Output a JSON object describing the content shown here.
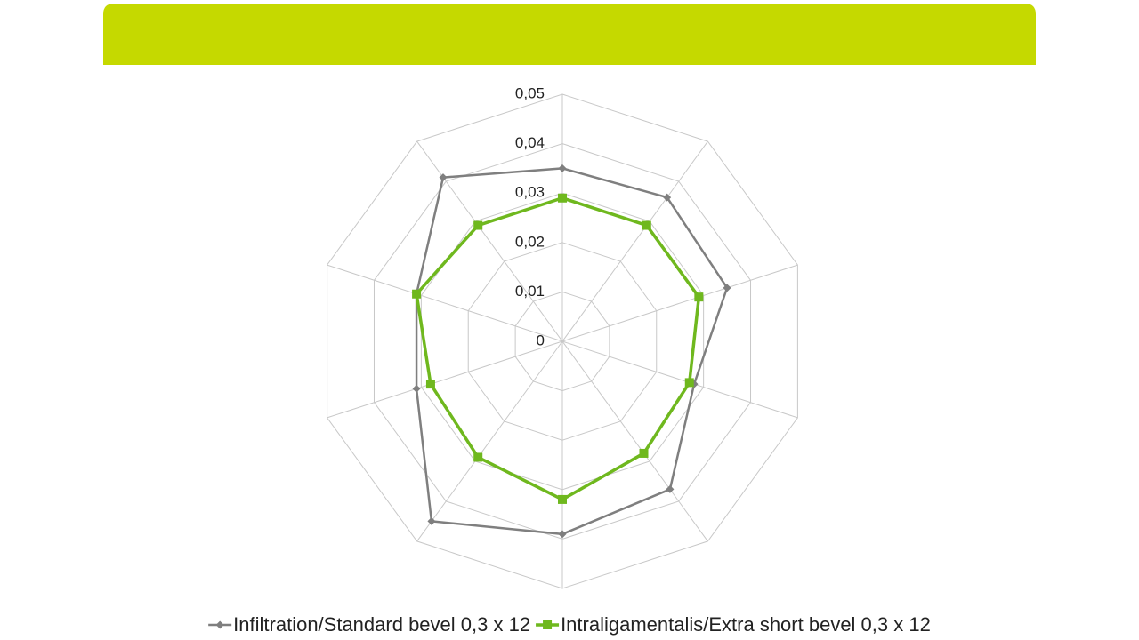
{
  "chart_data": {
    "type": "radar",
    "categories": [
      null,
      null,
      null,
      null,
      null,
      null,
      null,
      null,
      null,
      null
    ],
    "series": [
      {
        "name": "Infiltration/Standard bevel 0,3 x 12",
        "color": "#7f7f7f",
        "marker": "diamond",
        "values": [
          0.035,
          0.036,
          0.035,
          0.028,
          0.037,
          0.039,
          0.045,
          0.031,
          0.031,
          0.041
        ]
      },
      {
        "name": "Intraligamentalis/Extra short bevel 0,3 x 12",
        "color": "#6fb81e",
        "marker": "square",
        "values": [
          0.029,
          0.029,
          0.029,
          0.027,
          0.028,
          0.032,
          0.029,
          0.028,
          0.031,
          0.029
        ]
      }
    ],
    "ylim": [
      0,
      0.05
    ],
    "yticks": [
      0,
      {
        "value": 0.01,
        "label": "0,01"
      },
      {
        "value": 0.02,
        "label": "0,02"
      },
      {
        "value": 0.03,
        "label": "0,03"
      },
      {
        "value": 0.04,
        "label": "0,04"
      },
      {
        "value": 0.05,
        "label": "0,05"
      }
    ],
    "grid": true,
    "legend": "bottom"
  }
}
